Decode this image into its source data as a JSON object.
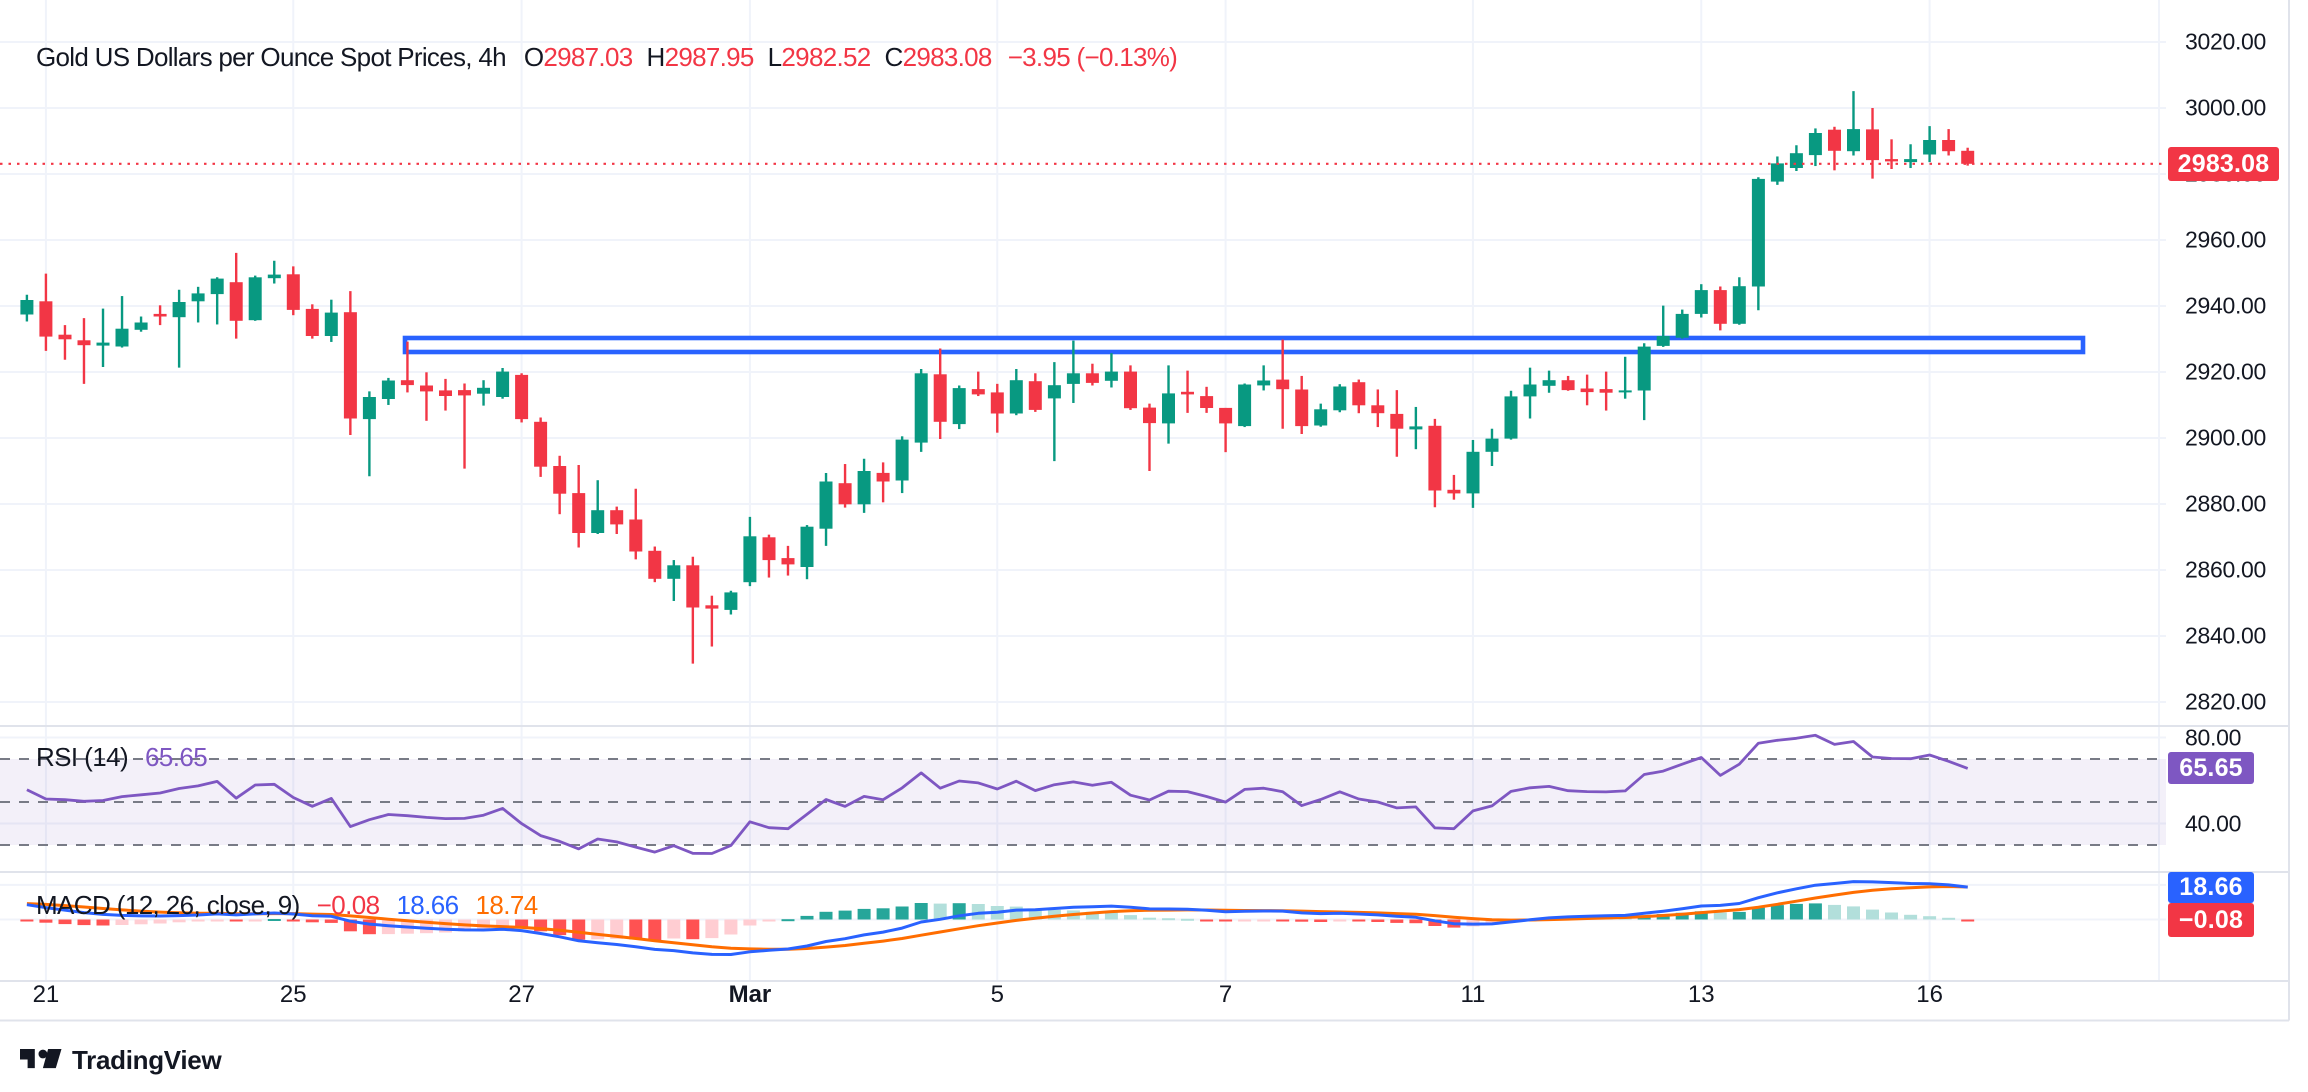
{
  "title": {
    "symbol": "Gold US Dollars per Ounce Spot Prices, 4h",
    "o_label": "O",
    "o_value": "2987.03",
    "h_label": "H",
    "h_value": "2987.95",
    "l_label": "L",
    "l_value": "2982.52",
    "c_label": "C",
    "c_value": "2983.08",
    "change": "−3.95 (−0.13%)"
  },
  "price_axis": {
    "ticks": [
      "3020.00",
      "3000.00",
      "2980.00",
      "2960.00",
      "2940.00",
      "2920.00",
      "2900.00",
      "2880.00",
      "2860.00",
      "2840.00",
      "2820.00"
    ],
    "tick_values": [
      3020,
      3000,
      2980,
      2960,
      2940,
      2920,
      2900,
      2880,
      2860,
      2840,
      2820
    ],
    "price_badge": "2983.08"
  },
  "rsi_pane": {
    "label": "RSI (14)",
    "value": "65.65",
    "badge": "65.65",
    "ticks": [
      "80.00",
      "40.00"
    ],
    "tick_values": [
      80,
      40
    ],
    "band_levels": [
      70,
      50,
      30
    ]
  },
  "macd_pane": {
    "label": "MACD (12, 26, close, 9)",
    "hist_value": "−0.08",
    "macd_value": "18.66",
    "signal_value": "18.74",
    "macd_badge": "18.66",
    "hist_badge": "−0.08"
  },
  "time_axis": {
    "labels": [
      {
        "index": 1,
        "text": "21",
        "bold": false
      },
      {
        "index": 14,
        "text": "25",
        "bold": false
      },
      {
        "index": 26,
        "text": "27",
        "bold": false
      },
      {
        "index": 38,
        "text": "Mar",
        "bold": true
      },
      {
        "index": 51,
        "text": "5",
        "bold": false
      },
      {
        "index": 63,
        "text": "7",
        "bold": false
      },
      {
        "index": 76,
        "text": "11",
        "bold": false
      },
      {
        "index": 88,
        "text": "13",
        "bold": false
      },
      {
        "index": 100,
        "text": "16",
        "bold": false
      }
    ]
  },
  "watermark": {
    "brand": "TradingView"
  },
  "colors": {
    "up": "#089981",
    "down": "#F23645",
    "accent_blue": "#2962FF",
    "signal_orange": "#FF6D00",
    "rsi_purple": "#7E57C2",
    "grid": "#F0F3FA",
    "separator": "#E0E3EB",
    "text": "#131722",
    "background": "#FFFFFF",
    "hist_pos": "#26A69A",
    "hist_pos_weak": "#B2DFDB",
    "hist_neg": "#FF5252",
    "hist_neg_weak": "#FFCDD2",
    "price_badge_bg": "#F23645",
    "rsi_badge_bg": "#7E57C2",
    "macd_badge_bg": "#2962FF",
    "hist_badge_bg": "#F23645"
  },
  "chart_data": {
    "type": "candlestick_with_indicators",
    "title": "Gold US Dollars per Ounce Spot Prices",
    "interval": "4h",
    "ohlc_display": {
      "open": 2987.03,
      "high": 2987.95,
      "low": 2982.52,
      "close": 2983.08,
      "change": -3.95,
      "change_pct": -0.13
    },
    "last_price": 2983.08,
    "price_grid_step": 20,
    "price_axis_range": [
      2812.7,
      3032.7
    ],
    "candles": [
      [
        2937.4,
        2943.4,
        2935.3,
        2941.8
      ],
      [
        2941.4,
        2949.8,
        2926.4,
        2930.7
      ],
      [
        2931.3,
        2934.2,
        2923.7,
        2929.9
      ],
      [
        2929.6,
        2936.3,
        2916.4,
        2928.1
      ],
      [
        2928.0,
        2939.2,
        2921.5,
        2928.9
      ],
      [
        2927.7,
        2943.0,
        2927.4,
        2933.1
      ],
      [
        2932.8,
        2936.8,
        2932.2,
        2935.0
      ],
      [
        2937.6,
        2940.2,
        2934.2,
        2936.8
      ],
      [
        2936.6,
        2944.9,
        2921.3,
        2941.2
      ],
      [
        2941.4,
        2945.8,
        2935.0,
        2943.8
      ],
      [
        2943.6,
        2948.7,
        2934.4,
        2948.3
      ],
      [
        2947.2,
        2956.1,
        2930.1,
        2935.5
      ],
      [
        2935.7,
        2949.2,
        2935.5,
        2948.7
      ],
      [
        2948.4,
        2953.7,
        2946.8,
        2949.5
      ],
      [
        2949.6,
        2952.0,
        2937.2,
        2938.8
      ],
      [
        2939.1,
        2940.5,
        2930.1,
        2930.9
      ],
      [
        2930.9,
        2941.9,
        2929.1,
        2938.0
      ],
      [
        2938.1,
        2944.5,
        2900.9,
        2905.9
      ],
      [
        2905.7,
        2914.1,
        2888.4,
        2912.4
      ],
      [
        2911.8,
        2918.2,
        2910.0,
        2917.4
      ],
      [
        2917.5,
        2929.2,
        2913.8,
        2916.0
      ],
      [
        2915.9,
        2919.9,
        2905.2,
        2914.1
      ],
      [
        2914.4,
        2917.9,
        2908.3,
        2912.7
      ],
      [
        2914.5,
        2916.5,
        2890.7,
        2912.9
      ],
      [
        2913.4,
        2917.5,
        2909.8,
        2915.2
      ],
      [
        2912.4,
        2921.2,
        2911.9,
        2920.1
      ],
      [
        2919.1,
        2919.6,
        2904.7,
        2905.7
      ],
      [
        2904.9,
        2906.2,
        2888.2,
        2891.3
      ],
      [
        2891.5,
        2894.6,
        2876.9,
        2883.1
      ],
      [
        2883.3,
        2891.8,
        2866.8,
        2871.2
      ],
      [
        2871.2,
        2887.2,
        2870.9,
        2878.1
      ],
      [
        2878.1,
        2879.2,
        2870.9,
        2873.8
      ],
      [
        2875.3,
        2884.6,
        2863.2,
        2865.6
      ],
      [
        2865.8,
        2867.1,
        2856.3,
        2857.3
      ],
      [
        2857.3,
        2863.0,
        2850.6,
        2861.4
      ],
      [
        2861.4,
        2864.0,
        2831.6,
        2848.6
      ],
      [
        2849.3,
        2852.2,
        2836.8,
        2848.3
      ],
      [
        2847.9,
        2853.7,
        2846.5,
        2853.2
      ],
      [
        2856.3,
        2876.1,
        2855.1,
        2870.2
      ],
      [
        2869.9,
        2870.7,
        2857.7,
        2863.0
      ],
      [
        2863.6,
        2867.3,
        2858.3,
        2861.7
      ],
      [
        2860.9,
        2873.6,
        2857.2,
        2873.1
      ],
      [
        2872.5,
        2889.4,
        2867.3,
        2886.8
      ],
      [
        2886.3,
        2892.1,
        2878.9,
        2879.9
      ],
      [
        2879.9,
        2893.7,
        2877.3,
        2890.0
      ],
      [
        2889.4,
        2892.6,
        2880.5,
        2886.8
      ],
      [
        2887.1,
        2900.5,
        2883.3,
        2899.5
      ],
      [
        2898.6,
        2920.9,
        2895.8,
        2919.6
      ],
      [
        2919.3,
        2927.1,
        2899.7,
        2904.9
      ],
      [
        2904.2,
        2915.9,
        2902.7,
        2915.1
      ],
      [
        2914.8,
        2920.1,
        2912.7,
        2913.2
      ],
      [
        2913.8,
        2916.4,
        2901.6,
        2907.4
      ],
      [
        2907.4,
        2920.9,
        2906.9,
        2917.5
      ],
      [
        2917.2,
        2919.6,
        2907.9,
        2908.5
      ],
      [
        2912.0,
        2923.0,
        2893.0,
        2916.0
      ],
      [
        2916.4,
        2929.5,
        2910.6,
        2919.6
      ],
      [
        2919.6,
        2922.5,
        2915.9,
        2916.7
      ],
      [
        2917.3,
        2925.7,
        2915.3,
        2920.1
      ],
      [
        2920.1,
        2922.0,
        2908.5,
        2909.0
      ],
      [
        2909.2,
        2910.4,
        2890.0,
        2904.5
      ],
      [
        2904.4,
        2922.0,
        2898.3,
        2913.5
      ],
      [
        2914.0,
        2920.4,
        2907.6,
        2913.2
      ],
      [
        2912.7,
        2915.5,
        2907.6,
        2909.1
      ],
      [
        2909.1,
        2909.1,
        2895.7,
        2904.4
      ],
      [
        2903.6,
        2916.5,
        2903.3,
        2916.2
      ],
      [
        2915.9,
        2922.0,
        2914.4,
        2917.4
      ],
      [
        2917.7,
        2929.8,
        2902.8,
        2914.8
      ],
      [
        2914.7,
        2918.8,
        2901.2,
        2903.6
      ],
      [
        2903.8,
        2910.4,
        2903.4,
        2908.7
      ],
      [
        2908.4,
        2916.3,
        2907.8,
        2915.6
      ],
      [
        2916.9,
        2917.7,
        2907.5,
        2909.9
      ],
      [
        2909.9,
        2914.7,
        2903.3,
        2907.5
      ],
      [
        2907.3,
        2914.5,
        2894.3,
        2902.8
      ],
      [
        2902.6,
        2909.4,
        2896.6,
        2903.5
      ],
      [
        2903.7,
        2905.8,
        2879.0,
        2884.1
      ],
      [
        2884.3,
        2888.8,
        2881.3,
        2883.2
      ],
      [
        2883.2,
        2899.4,
        2878.8,
        2895.8
      ],
      [
        2895.8,
        2902.8,
        2891.5,
        2899.8
      ],
      [
        2899.8,
        2914.3,
        2899.5,
        2912.6
      ],
      [
        2912.6,
        2921.3,
        2905.9,
        2916.2
      ],
      [
        2915.8,
        2920.4,
        2913.7,
        2917.5
      ],
      [
        2917.5,
        2918.8,
        2914.3,
        2914.5
      ],
      [
        2915.0,
        2919.2,
        2909.9,
        2913.9
      ],
      [
        2914.8,
        2920.1,
        2908.3,
        2913.7
      ],
      [
        2913.8,
        2924.6,
        2911.9,
        2914.4
      ],
      [
        2914.4,
        2928.7,
        2905.4,
        2927.7
      ],
      [
        2927.9,
        2940.1,
        2927.6,
        2930.9
      ],
      [
        2930.4,
        2938.9,
        2930.1,
        2937.6
      ],
      [
        2937.6,
        2946.6,
        2936.5,
        2944.8
      ],
      [
        2944.8,
        2945.9,
        2932.6,
        2934.6
      ],
      [
        2934.6,
        2948.7,
        2934.3,
        2946.0
      ],
      [
        2945.9,
        2979.0,
        2938.7,
        2978.5
      ],
      [
        2977.7,
        2985.3,
        2976.7,
        2983.2
      ],
      [
        2981.8,
        2988.7,
        2980.9,
        2986.3
      ],
      [
        2985.7,
        2993.8,
        2982.4,
        2992.4
      ],
      [
        2993.4,
        2994.3,
        2981.1,
        2987.0
      ],
      [
        2986.9,
        3005.1,
        2985.6,
        2993.6
      ],
      [
        2993.5,
        3000.0,
        2978.6,
        2984.2
      ],
      [
        2984.5,
        2990.5,
        2981.5,
        2983.8
      ],
      [
        2983.6,
        2989.0,
        2981.8,
        2984.5
      ],
      [
        2985.9,
        2994.5,
        2983.6,
        2990.3
      ],
      [
        2990.3,
        2993.6,
        2985.6,
        2986.9
      ],
      [
        2987.03,
        2987.95,
        2982.52,
        2983.08
      ]
    ],
    "rectangle_zone": {
      "price_top": 2930.3,
      "price_bottom": 2926.2,
      "from_candle": 20,
      "to_x_past_last": true
    },
    "rsi": {
      "period": 14,
      "last": 65.65,
      "overbought": 70,
      "mid": 50,
      "oversold": 30,
      "values": [
        55.74,
        51.39,
        51.08,
        50.34,
        50.68,
        52.52,
        53.37,
        54.2,
        56.26,
        57.47,
        59.57,
        51.76,
        57.89,
        58.24,
        52.07,
        48.02,
        51.66,
        38.54,
        41.76,
        44.19,
        43.64,
        42.86,
        42.27,
        42.39,
        43.88,
        47.01,
        39.95,
        34.38,
        31.67,
        28.2,
        32.8,
        31.45,
        29.0,
        26.72,
        29.66,
        26.14,
        26.06,
        29.75,
        40.78,
        38.06,
        37.57,
        44.32,
        51.15,
        47.96,
        52.62,
        51.06,
        56.57,
        63.55,
        56.41,
        59.79,
        58.87,
        56.05,
        59.67,
        55.3,
        58.06,
        59.36,
        57.8,
        59.15,
        53.18,
        50.93,
        55.02,
        54.86,
        52.55,
        49.96,
        55.85,
        56.41,
        54.79,
        48.32,
        51.15,
        54.75,
        51.38,
        49.98,
        47.27,
        47.73,
        37.96,
        37.57,
        45.84,
        48.18,
        54.91,
        56.62,
        57.25,
        55.26,
        54.85,
        54.71,
        55.16,
        62.77,
        64.38,
        67.56,
        70.68,
        62.36,
        67.57,
        77.34,
        78.71,
        79.64,
        81.02,
        76.79,
        78.15,
        70.91,
        70.25,
        70.16,
        71.86,
        68.92,
        65.65
      ]
    },
    "macd": {
      "fast": 12,
      "slow": 26,
      "source": "close",
      "smoothing": 9,
      "last": {
        "macd": 18.66,
        "signal": 18.74,
        "histogram": -0.08
      },
      "macd": [
        8.56,
        6.84,
        5.34,
        3.97,
        2.92,
        2.39,
        2.1,
        2.0,
        2.24,
        2.61,
        3.24,
        2.67,
        3.24,
        3.72,
        3.2,
        2.12,
        1.82,
        -0.99,
        -2.67,
        -3.56,
        -4.32,
        -5.02,
        -5.62,
        -6.02,
        -6.07,
        -5.66,
        -6.41,
        -8.08,
        -9.95,
        -12.26,
        -13.37,
        -14.43,
        -15.75,
        -17.27,
        -17.94,
        -19.27,
        -20.13,
        -20.18,
        -18.63,
        -17.78,
        -17.01,
        -15.31,
        -12.71,
        -11.07,
        -8.86,
        -7.28,
        -4.95,
        -1.46,
        0.11,
        2.16,
        3.59,
        4.2,
        5.44,
        5.63,
        6.32,
        7.07,
        7.35,
        7.75,
        7.09,
        6.14,
        6.04,
        5.87,
        5.34,
        4.49,
        4.71,
        4.93,
        4.84,
        3.82,
        3.38,
        3.55,
        3.19,
        2.68,
        1.87,
        1.27,
        -0.76,
        -2.41,
        -2.67,
        -2.53,
        -1.37,
        -0.15,
        0.9,
        1.48,
        1.87,
        2.14,
        2.38,
        3.6,
        4.77,
        6.17,
        7.77,
        8.12,
        9.21,
        12.55,
        15.41,
        17.71,
        19.8,
        20.78,
        21.84,
        21.67,
        21.26,
        20.75,
        20.58,
        19.94,
        18.66
      ],
      "signal": [
        9.15,
        8.69,
        8.02,
        7.21,
        6.35,
        5.56,
        4.87,
        4.29,
        3.88,
        3.63,
        3.55,
        3.37,
        3.35,
        3.42,
        3.38,
        3.13,
        2.87,
        2.09,
        1.14,
        0.2,
        -0.7,
        -1.57,
        -2.38,
        -3.11,
        -3.7,
        -4.09,
        -4.56,
        -5.26,
        -6.2,
        -7.41,
        -8.6,
        -9.77,
        -10.96,
        -12.23,
        -13.37,
        -14.55,
        -15.67,
        -16.57,
        -16.98,
        -17.14,
        -17.11,
        -16.75,
        -15.94,
        -14.97,
        -13.75,
        -12.45,
        -10.95,
        -9.06,
        -7.22,
        -5.35,
        -3.56,
        -2.01,
        -0.52,
        0.71,
        1.83,
        2.88,
        3.77,
        4.57,
        5.07,
        5.29,
        5.44,
        5.52,
        5.49,
        5.29,
        5.17,
        5.12,
        5.07,
        4.82,
        4.53,
        4.33,
        4.11,
        3.82,
        3.43,
        3.0,
        2.25,
        1.32,
        0.52,
        -0.09,
        -0.35,
        -0.31,
        -0.07,
        0.24,
        0.57,
        0.88,
        1.18,
        1.66,
        2.29,
        3.06,
        4.0,
        4.83,
        5.7,
        7.07,
        8.74,
        10.53,
        12.39,
        14.07,
        15.62,
        16.83,
        17.72,
        18.33,
        18.78,
        19.01,
        18.74
      ],
      "histogram": [
        -0.59,
        -1.85,
        -2.67,
        -3.24,
        -3.44,
        -3.17,
        -2.77,
        -2.3,
        -1.64,
        -1.01,
        -0.31,
        -0.71,
        -0.11,
        0.3,
        -0.23,
        -1.61,
        -1.98,
        -6.79,
        -8.47,
        -8.43,
        -8.2,
        -7.91,
        -7.5,
        -6.79,
        -5.59,
        -3.72,
        -4.46,
        -6.78,
        -9.01,
        -11.63,
        -11.44,
        -11.19,
        -11.49,
        -12.11,
        -10.96,
        -11.34,
        -10.71,
        -8.66,
        -3.46,
        -1.15,
        0.15,
        2.08,
        4.45,
        5.11,
        6.11,
        6.46,
        7.5,
        9.49,
        9.17,
        9.38,
        8.93,
        7.76,
        7.45,
        6.15,
        5.6,
        5.23,
        4.46,
        3.98,
        2.52,
        1.06,
        0.75,
        0.43,
        -0.18,
        -1.0,
        -0.57,
        -0.24,
        -0.28,
        -1.25,
        -1.44,
        -0.98,
        -1.15,
        -1.43,
        -1.95,
        -2.16,
        -3.75,
        -4.66,
        -3.99,
        -3.05,
        -1.28,
        0.19,
        1.21,
        1.55,
        1.62,
        1.57,
        1.49,
        2.42,
        3.11,
        3.88,
        4.71,
        4.12,
        4.38,
        6.85,
        8.33,
        8.97,
        9.27,
        8.4,
        7.55,
        5.71,
        4.05,
        2.69,
        1.93,
        0.96,
        -0.08
      ]
    },
    "time_labels": [
      {
        "index": 1,
        "label": "21"
      },
      {
        "index": 14,
        "label": "25"
      },
      {
        "index": 26,
        "label": "27"
      },
      {
        "index": 38,
        "label": "Mar"
      },
      {
        "index": 51,
        "label": "5"
      },
      {
        "index": 63,
        "label": "7"
      },
      {
        "index": 76,
        "label": "11"
      },
      {
        "index": 88,
        "label": "13"
      },
      {
        "index": 100,
        "label": "16"
      }
    ]
  }
}
